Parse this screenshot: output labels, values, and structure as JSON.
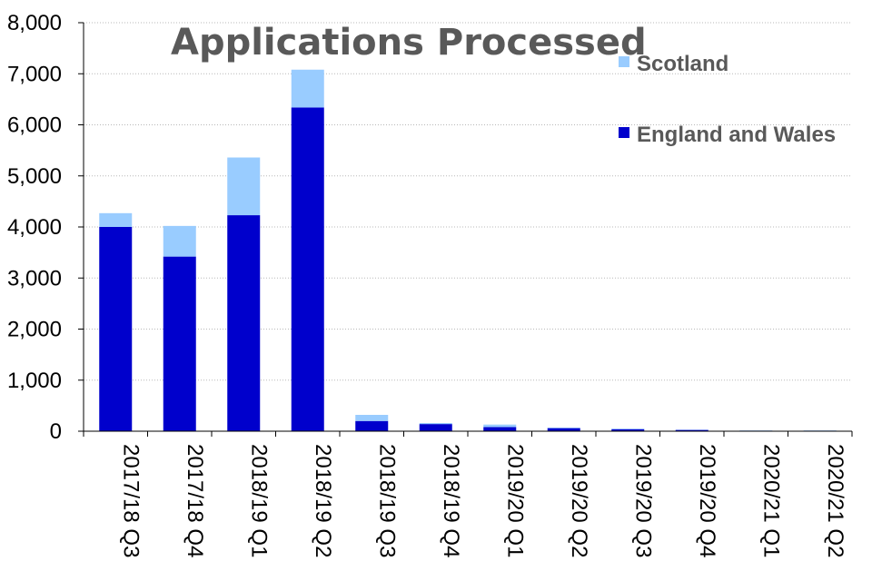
{
  "chart_data": {
    "type": "bar",
    "stacked": true,
    "title": "Applications Processed",
    "xlabel": "",
    "ylabel": "",
    "categories": [
      "2017/18 Q3",
      "2017/18 Q4",
      "2018/19 Q1",
      "2018/19 Q2",
      "2018/19 Q3",
      "2018/19 Q4",
      "2019/20 Q1",
      "2019/20 Q2",
      "2019/20 Q3",
      "2019/20 Q4",
      "2020/21 Q1",
      "2020/21 Q2"
    ],
    "series": [
      {
        "name": "England and Wales",
        "color": "#0000cc",
        "values": [
          4000,
          3420,
          4230,
          6340,
          200,
          140,
          80,
          60,
          40,
          25,
          10,
          10
        ]
      },
      {
        "name": "Scotland",
        "color": "#99ccff",
        "values": [
          270,
          600,
          1130,
          740,
          120,
          20,
          50,
          10,
          10,
          5,
          5,
          5
        ]
      }
    ],
    "ylim": [
      0,
      8000
    ],
    "yticks": [
      0,
      1000,
      2000,
      3000,
      4000,
      5000,
      6000,
      7000,
      8000
    ],
    "ytick_labels": [
      "0",
      "1,000",
      "2,000",
      "3,000",
      "4,000",
      "5,000",
      "6,000",
      "7,000",
      "8,000"
    ],
    "grid": true,
    "legend_position": "top-right"
  }
}
